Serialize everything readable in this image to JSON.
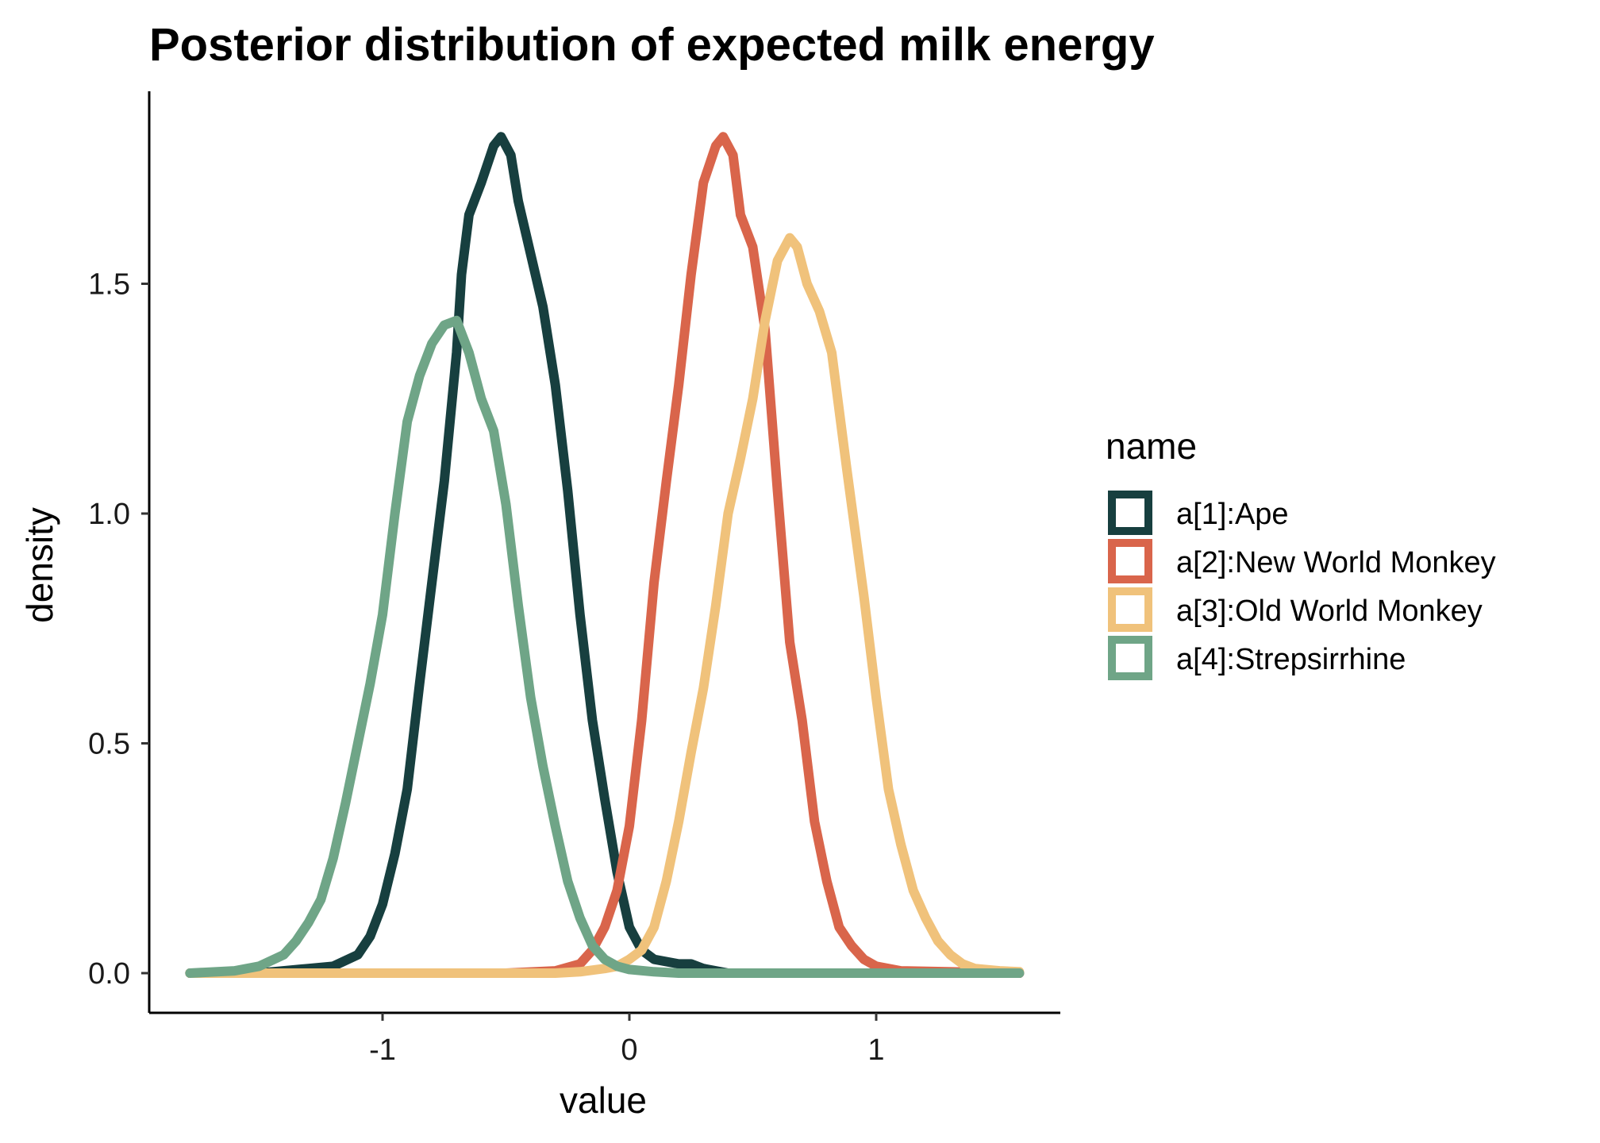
{
  "chart_data": {
    "type": "line",
    "title": "Posterior distribution of expected milk energy",
    "xlabel": "value",
    "ylabel": "density",
    "xlim": [
      -1.95,
      1.75
    ],
    "ylim": [
      -0.09,
      1.92
    ],
    "x_ticks": [
      -1,
      0,
      1
    ],
    "x_tick_labels": [
      "-1",
      "0",
      "1"
    ],
    "y_ticks": [
      0.0,
      0.5,
      1.0,
      1.5
    ],
    "y_tick_labels": [
      "0.0",
      "0.5",
      "1.0",
      "1.5"
    ],
    "grid": false,
    "legend": {
      "title": "name",
      "position": "right"
    },
    "series": [
      {
        "name": "a[1]:Ape",
        "color": "#173f3f",
        "points": [
          [
            -1.78,
            0
          ],
          [
            -1.5,
            0.0
          ],
          [
            -1.3,
            0.01
          ],
          [
            -1.2,
            0.015
          ],
          [
            -1.1,
            0.04
          ],
          [
            -1.05,
            0.08
          ],
          [
            -1.0,
            0.15
          ],
          [
            -0.95,
            0.26
          ],
          [
            -0.9,
            0.4
          ],
          [
            -0.85,
            0.63
          ],
          [
            -0.8,
            0.85
          ],
          [
            -0.75,
            1.07
          ],
          [
            -0.7,
            1.35
          ],
          [
            -0.68,
            1.52
          ],
          [
            -0.65,
            1.65
          ],
          [
            -0.6,
            1.72
          ],
          [
            -0.55,
            1.8
          ],
          [
            -0.52,
            1.82
          ],
          [
            -0.48,
            1.78
          ],
          [
            -0.45,
            1.68
          ],
          [
            -0.35,
            1.45
          ],
          [
            -0.3,
            1.28
          ],
          [
            -0.25,
            1.05
          ],
          [
            -0.2,
            0.78
          ],
          [
            -0.15,
            0.55
          ],
          [
            -0.1,
            0.38
          ],
          [
            -0.05,
            0.22
          ],
          [
            0.0,
            0.1
          ],
          [
            0.05,
            0.05
          ],
          [
            0.1,
            0.03
          ],
          [
            0.2,
            0.02
          ],
          [
            0.25,
            0.02
          ],
          [
            0.3,
            0.01
          ],
          [
            0.4,
            0.0
          ],
          [
            1.58,
            0
          ]
        ]
      },
      {
        "name": "a[2]:New World Monkey",
        "color": "#d9654b",
        "points": [
          [
            -1.78,
            0
          ],
          [
            -0.5,
            0.0
          ],
          [
            -0.3,
            0.005
          ],
          [
            -0.2,
            0.02
          ],
          [
            -0.15,
            0.05
          ],
          [
            -0.1,
            0.1
          ],
          [
            -0.05,
            0.18
          ],
          [
            0.0,
            0.32
          ],
          [
            0.05,
            0.55
          ],
          [
            0.1,
            0.85
          ],
          [
            0.15,
            1.07
          ],
          [
            0.2,
            1.28
          ],
          [
            0.25,
            1.52
          ],
          [
            0.3,
            1.72
          ],
          [
            0.35,
            1.8
          ],
          [
            0.38,
            1.82
          ],
          [
            0.42,
            1.78
          ],
          [
            0.45,
            1.65
          ],
          [
            0.5,
            1.58
          ],
          [
            0.55,
            1.4
          ],
          [
            0.6,
            1.05
          ],
          [
            0.65,
            0.72
          ],
          [
            0.7,
            0.55
          ],
          [
            0.75,
            0.33
          ],
          [
            0.8,
            0.2
          ],
          [
            0.85,
            0.1
          ],
          [
            0.9,
            0.06
          ],
          [
            0.95,
            0.03
          ],
          [
            1.0,
            0.015
          ],
          [
            1.1,
            0.005
          ],
          [
            1.58,
            0
          ]
        ]
      },
      {
        "name": "a[3]:Old World Monkey",
        "color": "#f0c27b",
        "points": [
          [
            -1.78,
            0
          ],
          [
            -0.3,
            0.0
          ],
          [
            -0.2,
            0.003
          ],
          [
            -0.1,
            0.01
          ],
          [
            -0.05,
            0.015
          ],
          [
            0.0,
            0.03
          ],
          [
            0.05,
            0.05
          ],
          [
            0.1,
            0.1
          ],
          [
            0.15,
            0.2
          ],
          [
            0.2,
            0.33
          ],
          [
            0.25,
            0.48
          ],
          [
            0.3,
            0.62
          ],
          [
            0.35,
            0.8
          ],
          [
            0.4,
            1.0
          ],
          [
            0.45,
            1.12
          ],
          [
            0.5,
            1.25
          ],
          [
            0.55,
            1.42
          ],
          [
            0.6,
            1.55
          ],
          [
            0.65,
            1.6
          ],
          [
            0.68,
            1.58
          ],
          [
            0.72,
            1.5
          ],
          [
            0.77,
            1.44
          ],
          [
            0.82,
            1.35
          ],
          [
            0.88,
            1.1
          ],
          [
            0.95,
            0.82
          ],
          [
            1.0,
            0.6
          ],
          [
            1.05,
            0.4
          ],
          [
            1.1,
            0.28
          ],
          [
            1.15,
            0.18
          ],
          [
            1.2,
            0.12
          ],
          [
            1.25,
            0.07
          ],
          [
            1.3,
            0.04
          ],
          [
            1.35,
            0.02
          ],
          [
            1.4,
            0.01
          ],
          [
            1.5,
            0.005
          ],
          [
            1.58,
            0.003
          ]
        ]
      },
      {
        "name": "a[4]:Strepsirrhine",
        "color": "#6fa587",
        "points": [
          [
            -1.78,
            0
          ],
          [
            -1.6,
            0.005
          ],
          [
            -1.5,
            0.015
          ],
          [
            -1.4,
            0.04
          ],
          [
            -1.35,
            0.07
          ],
          [
            -1.3,
            0.11
          ],
          [
            -1.25,
            0.16
          ],
          [
            -1.2,
            0.25
          ],
          [
            -1.15,
            0.37
          ],
          [
            -1.1,
            0.5
          ],
          [
            -1.05,
            0.63
          ],
          [
            -1.0,
            0.78
          ],
          [
            -0.95,
            1.0
          ],
          [
            -0.9,
            1.2
          ],
          [
            -0.85,
            1.3
          ],
          [
            -0.8,
            1.37
          ],
          [
            -0.75,
            1.41
          ],
          [
            -0.7,
            1.42
          ],
          [
            -0.65,
            1.35
          ],
          [
            -0.6,
            1.25
          ],
          [
            -0.55,
            1.18
          ],
          [
            -0.5,
            1.02
          ],
          [
            -0.45,
            0.8
          ],
          [
            -0.4,
            0.6
          ],
          [
            -0.35,
            0.45
          ],
          [
            -0.3,
            0.32
          ],
          [
            -0.25,
            0.2
          ],
          [
            -0.2,
            0.12
          ],
          [
            -0.15,
            0.06
          ],
          [
            -0.1,
            0.03
          ],
          [
            -0.05,
            0.015
          ],
          [
            0.0,
            0.008
          ],
          [
            0.1,
            0.003
          ],
          [
            0.2,
            0.0
          ],
          [
            1.58,
            0
          ]
        ]
      }
    ]
  }
}
